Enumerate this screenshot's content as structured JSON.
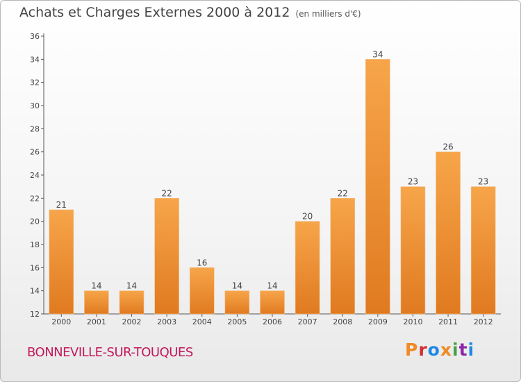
{
  "header": {
    "title": "Achats et Charges Externes 2000 à 2012",
    "unit": "(en milliers d'€)"
  },
  "footer": {
    "city": "BONNEVILLE-SUR-TOUQUES",
    "logo": "Proxiti"
  },
  "colors": {
    "bar_light": "#f7a54a",
    "bar_dark": "#e07a20",
    "title": "#444444",
    "city": "#c2185b",
    "logo": [
      "#f08a24",
      "#d32f2f",
      "#1e88e5",
      "#f08a24",
      "#43a047",
      "#8e24aa",
      "#1e88e5"
    ]
  },
  "chart_data": {
    "type": "bar",
    "categories": [
      "2000",
      "2001",
      "2002",
      "2003",
      "2004",
      "2005",
      "2006",
      "2007",
      "2008",
      "2009",
      "2010",
      "2011",
      "2012"
    ],
    "values": [
      21,
      14,
      14,
      22,
      16,
      14,
      14,
      20,
      22,
      34,
      23,
      26,
      23
    ],
    "title": "Achats et Charges Externes 2000 à 2012",
    "subtitle": "(en milliers d'€)",
    "ylim": [
      12,
      36
    ],
    "yticks": [
      12,
      14,
      16,
      18,
      20,
      22,
      24,
      26,
      28,
      30,
      32,
      34,
      36
    ],
    "grid": false
  }
}
